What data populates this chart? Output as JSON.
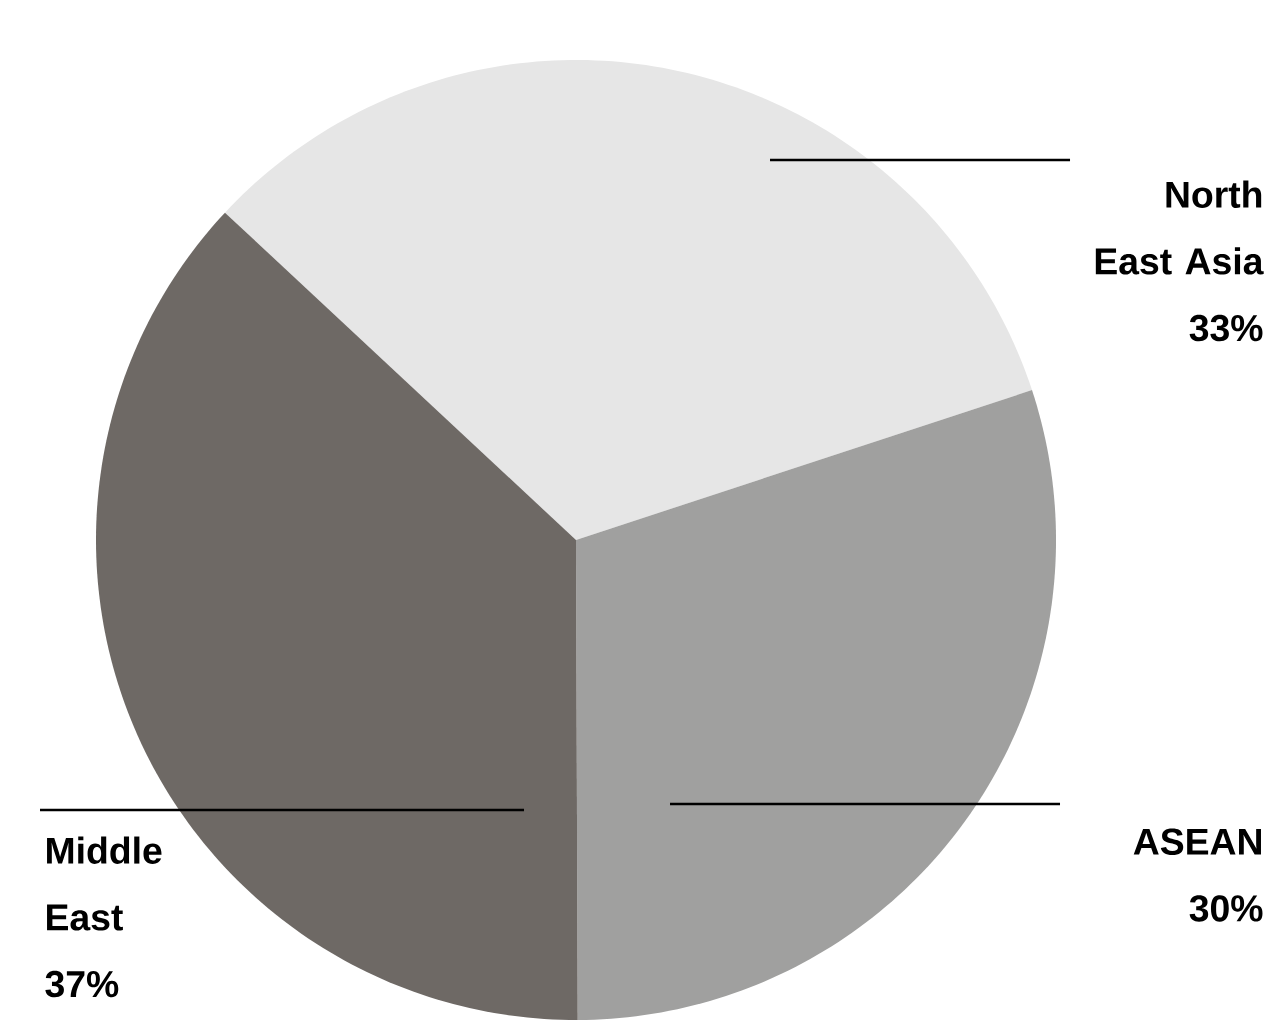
{
  "chart_data": {
    "type": "pie",
    "categories": [
      "North East Asia",
      "ASEAN",
      "Middle East"
    ],
    "values": [
      33,
      30,
      37
    ],
    "value_labels": [
      "33%",
      "30%",
      "37%"
    ],
    "colors": [
      "#e6e6e6",
      "#a0a09f",
      "#6e6965"
    ]
  }
}
